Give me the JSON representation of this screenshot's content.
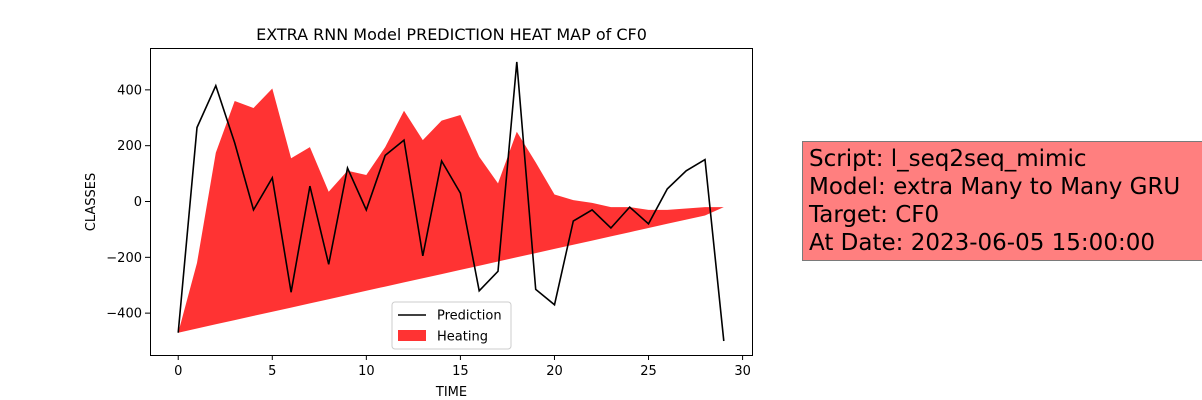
{
  "chart_data": {
    "type": "line",
    "title": "EXTRA RNN Model PREDICTION HEAT MAP of CF0",
    "xlabel": "TIME",
    "ylabel": "CLASSES",
    "xlim": [
      -1.5,
      30.5
    ],
    "ylim": [
      -550,
      550
    ],
    "xticks": [
      0,
      5,
      10,
      15,
      20,
      25,
      30
    ],
    "yticks": [
      -400,
      -200,
      0,
      200,
      400
    ],
    "x_tick_labels": [
      "0",
      "5",
      "10",
      "15",
      "20",
      "25",
      "30"
    ],
    "y_tick_labels": [
      "−400",
      "−200",
      "0",
      "200",
      "400"
    ],
    "grid": false,
    "legend_position": "lower center",
    "series": [
      {
        "name": "Prediction",
        "kind": "line",
        "color": "#000000",
        "x": [
          0,
          1,
          2,
          3,
          4,
          5,
          6,
          7,
          8,
          9,
          10,
          11,
          12,
          13,
          14,
          15,
          16,
          17,
          18,
          19,
          20,
          21,
          22,
          23,
          24,
          25,
          26,
          27,
          28,
          29
        ],
        "y": [
          -470,
          265,
          415,
          210,
          -30,
          85,
          -325,
          55,
          -225,
          120,
          -30,
          165,
          220,
          -195,
          145,
          30,
          -320,
          -250,
          500,
          -315,
          -370,
          -70,
          -30,
          -95,
          -20,
          -80,
          45,
          110,
          150,
          -500
        ]
      },
      {
        "name": "Heating",
        "kind": "fill_between",
        "color": "#ff0000",
        "x": [
          0,
          1,
          2,
          3,
          4,
          5,
          6,
          7,
          8,
          9,
          10,
          11,
          12,
          13,
          14,
          15,
          16,
          17,
          18,
          19,
          20,
          21,
          22,
          23,
          24,
          25,
          26,
          27,
          28,
          29
        ],
        "upper": [
          -470,
          -220,
          175,
          360,
          335,
          405,
          155,
          195,
          35,
          110,
          95,
          195,
          325,
          220,
          290,
          310,
          160,
          65,
          250,
          140,
          25,
          5,
          -5,
          -20,
          -20,
          -30,
          -30,
          -25,
          -20,
          -20
        ],
        "lower": [
          -470,
          -455,
          -440,
          -425,
          -410,
          -395,
          -380,
          -365,
          -350,
          -335,
          -320,
          -305,
          -290,
          -275,
          -260,
          -245,
          -230,
          -215,
          -200,
          -185,
          -170,
          -155,
          -140,
          -125,
          -110,
          -95,
          -80,
          -65,
          -50,
          -20
        ]
      }
    ]
  },
  "info_box": {
    "lines": [
      "Script: l_seq2seq_mimic",
      "Model: extra Many to Many GRU",
      "Target: CF0",
      "At Date: 2023-06-05 15:00:00"
    ],
    "background": "#ff7f7f"
  }
}
